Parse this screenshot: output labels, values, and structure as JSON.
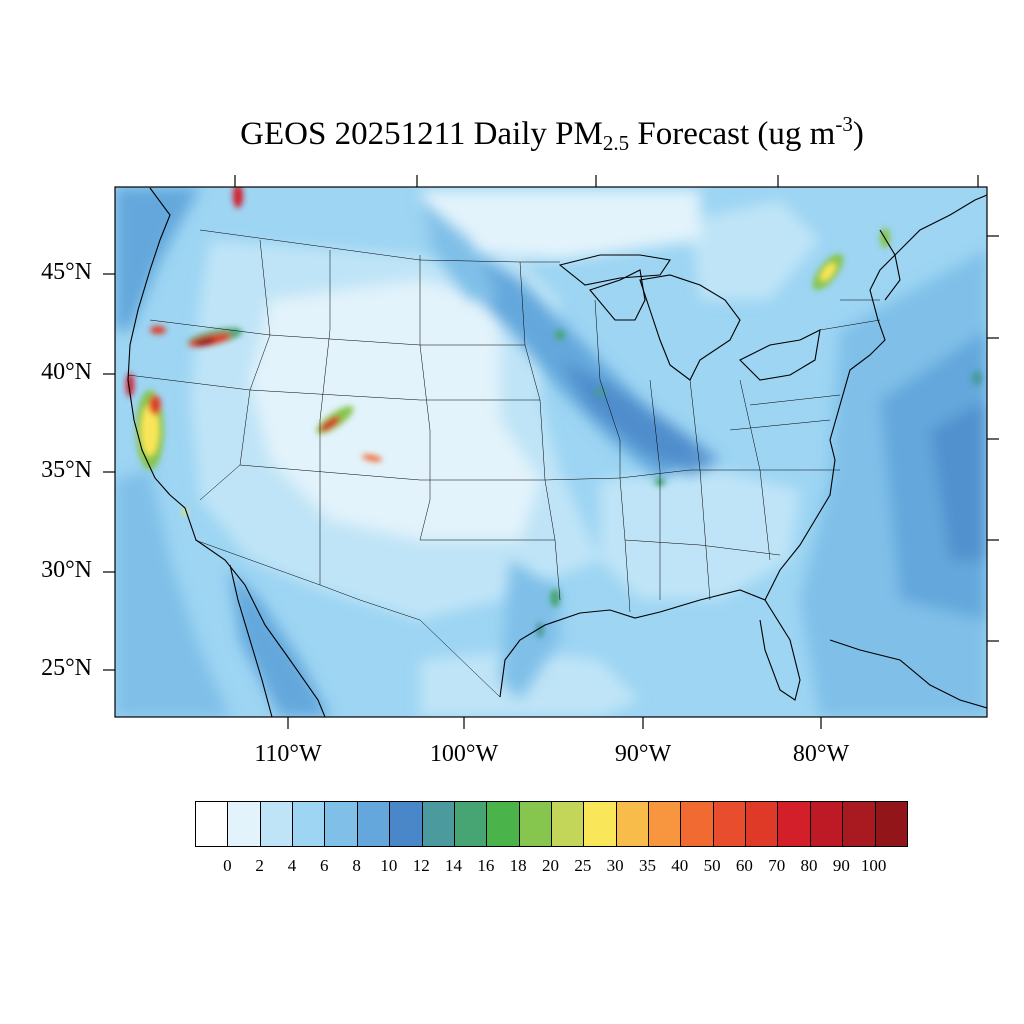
{
  "title": {
    "main": "GEOS 20251211 Daily PM",
    "subscript": "2.5",
    "rest": " Forecast (ug m",
    "superscript": "-3",
    "close": ")"
  },
  "map": {
    "lat_labels": [
      "45°N",
      "40°N",
      "35°N",
      "30°N",
      "25°N"
    ],
    "lon_labels": [
      "110°W",
      "100°W",
      "90°W",
      "80°W"
    ]
  },
  "colorbar": {
    "colors": [
      "#ffffff",
      "#e2f3fb",
      "#bfe4f7",
      "#9dd5f3",
      "#7fbfe8",
      "#63a7dc",
      "#4a87c8",
      "#4a9a9e",
      "#46a572",
      "#4ab44a",
      "#86c54e",
      "#c3d659",
      "#f9e659",
      "#f8bc4b",
      "#f7963e",
      "#f16a32",
      "#e84d2d",
      "#df3a28",
      "#d21f2a",
      "#be1a26",
      "#a91a20",
      "#921519"
    ],
    "labels": [
      "0",
      "2",
      "4",
      "6",
      "8",
      "10",
      "12",
      "14",
      "16",
      "18",
      "20",
      "25",
      "30",
      "35",
      "40",
      "50",
      "60",
      "70",
      "80",
      "90",
      "100"
    ]
  }
}
